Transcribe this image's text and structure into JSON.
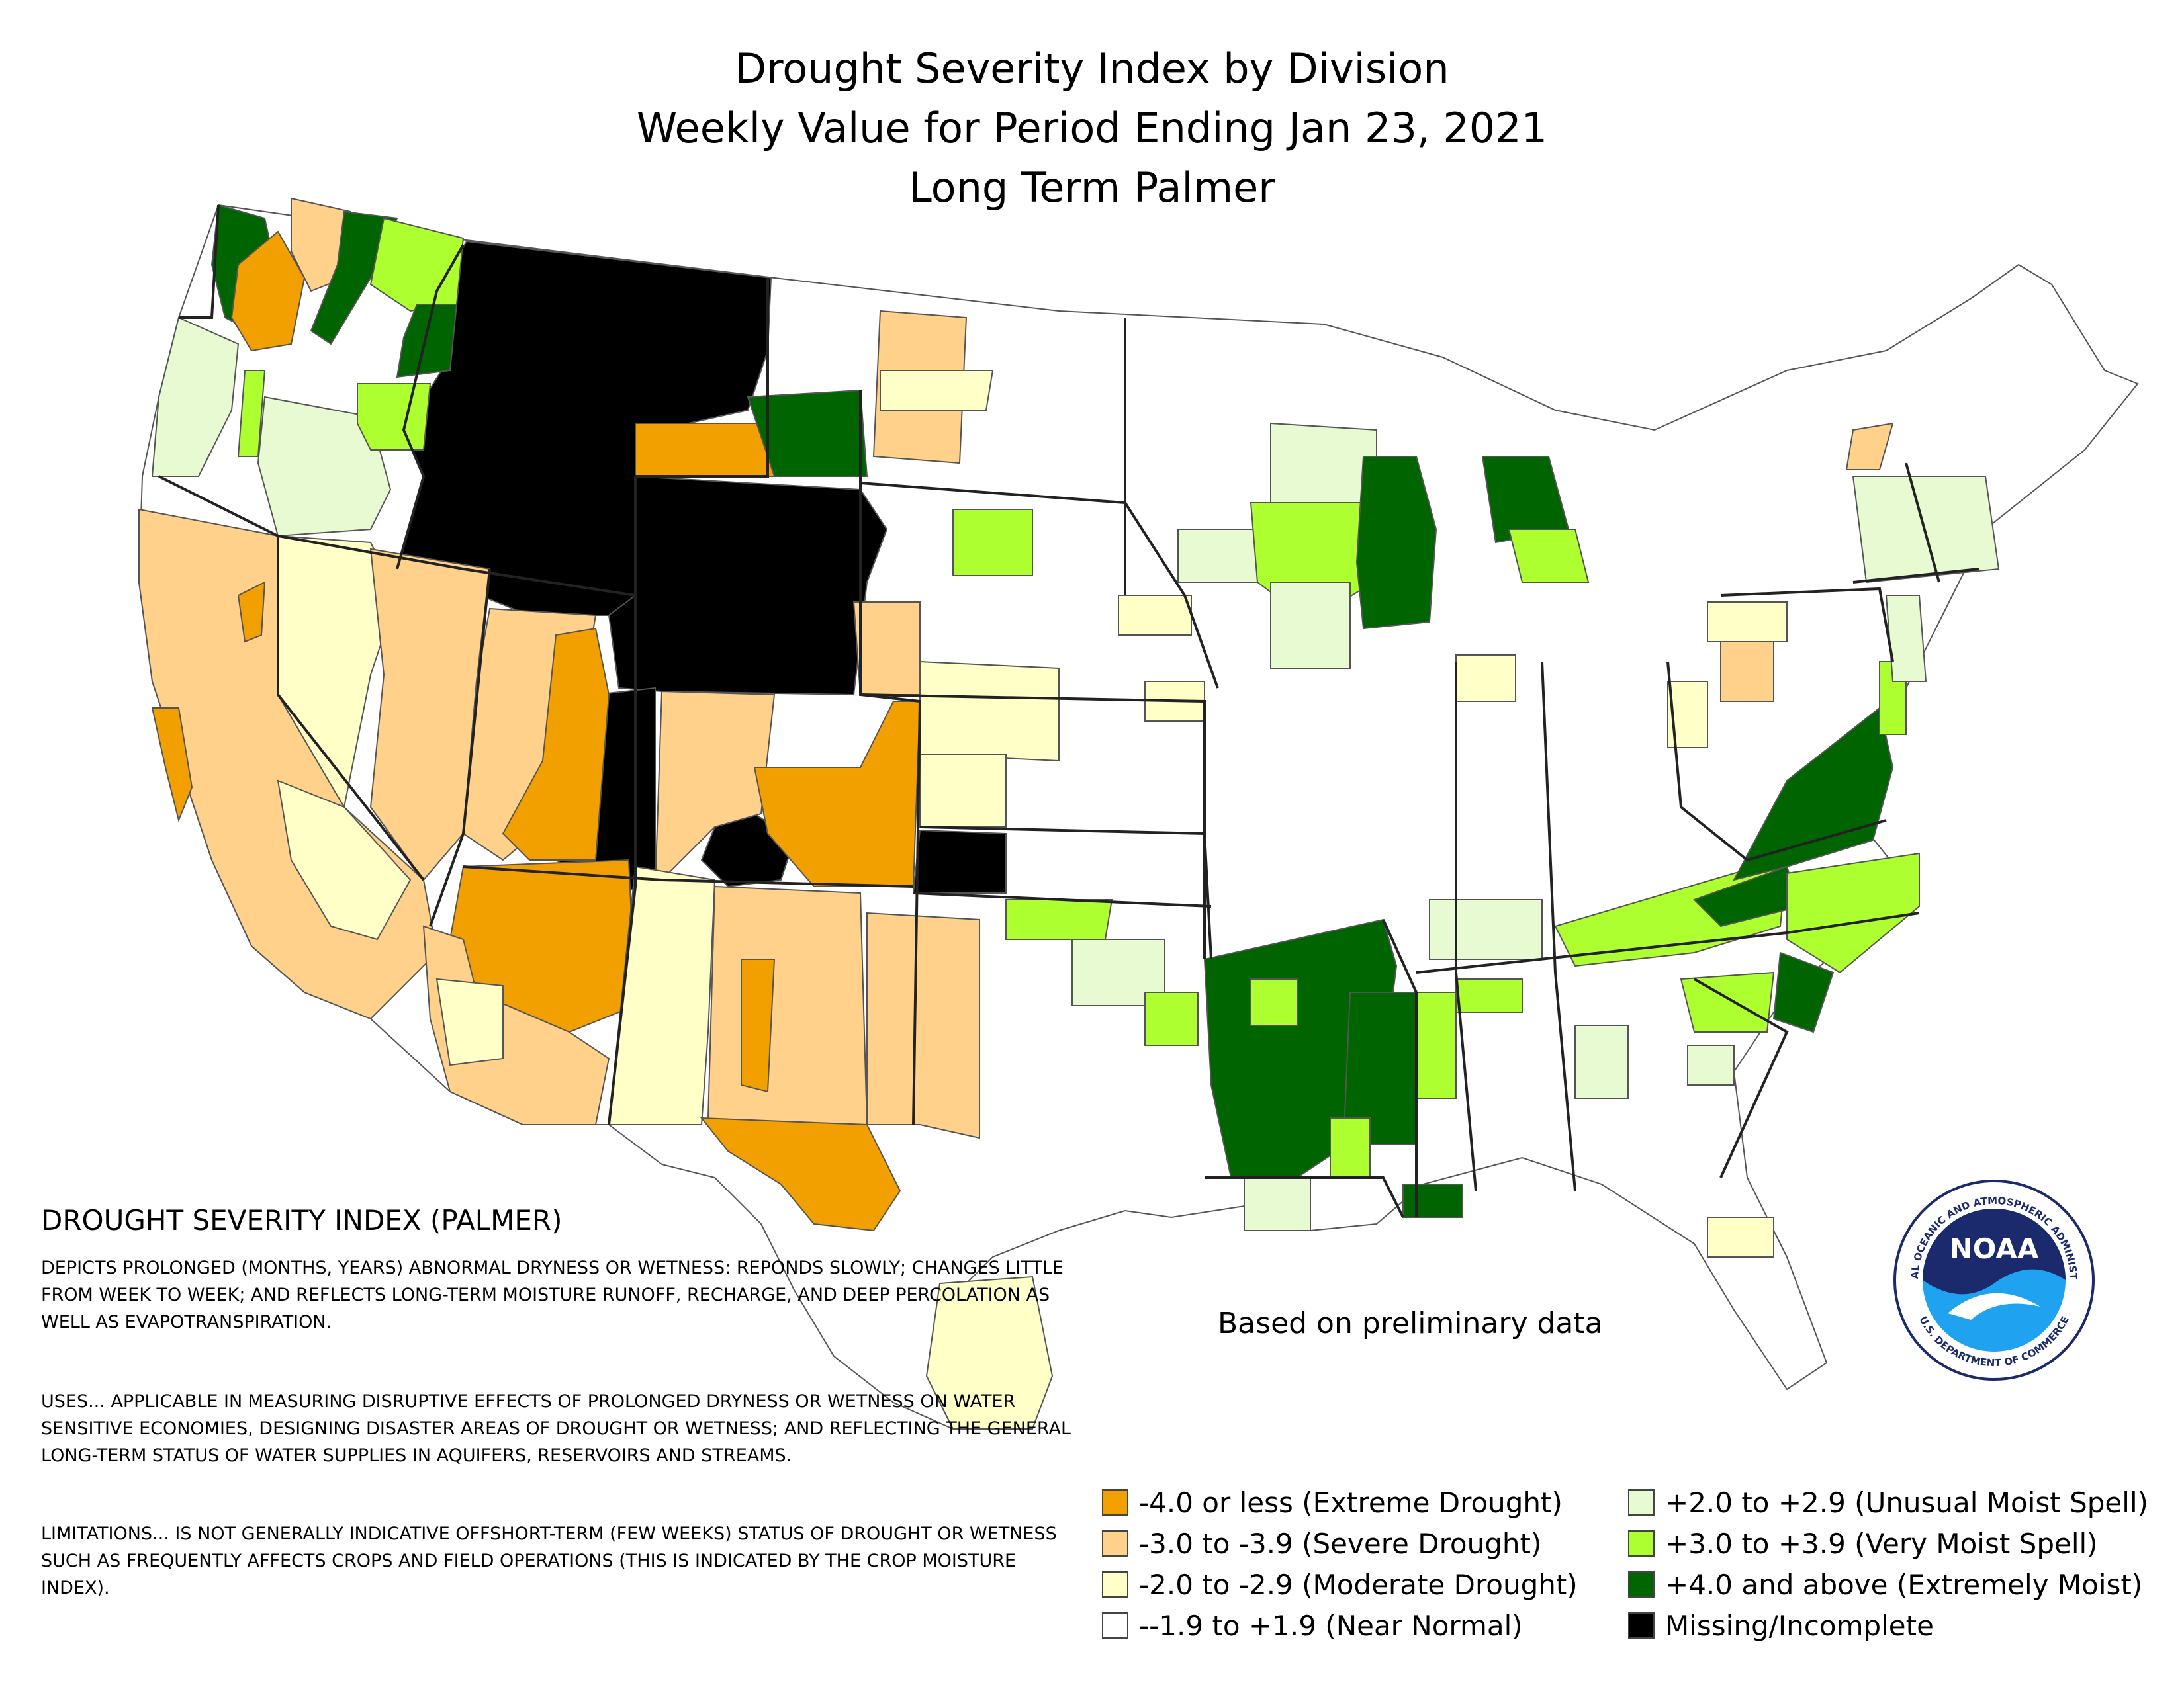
{
  "title_lines": [
    "Drought Severity Index by Division",
    "Weekly Value for Period Ending Jan 23, 2021",
    "Long Term Palmer"
  ],
  "description": {
    "heading": "DROUGHT SEVERITY INDEX (PALMER)",
    "paragraphs": [
      "DEPICTS PROLONGED (MONTHS, YEARS) ABNORMAL DRYNESS OR WETNESS: REPONDS SLOWLY; CHANGES LITTLE FROM WEEK TO WEEK; AND REFLECTS LONG-TERM MOISTURE RUNOFF, RECHARGE, AND DEEP PERCOLATION AS WELL AS EVAPOTRANSPIRATION.",
      "USES... APPLICABLE IN MEASURING DISRUPTIVE EFFECTS OF PROLONGED DRYNESS OR WETNESS ON WATER SENSITIVE ECONOMIES, DESIGNING DISASTER AREAS OF DROUGHT OR WETNESS; AND REFLECTING THE GENERAL LONG-TERM STATUS OF WATER SUPPLIES IN AQUIFERS, RESERVOIRS AND STREAMS.",
      "LIMITATIONS... IS NOT GENERALLY INDICATIVE OFFSHORT-TERM (FEW WEEKS) STATUS OF DROUGHT OR WETNESS SUCH AS FREQUENTLY AFFECTS CROPS AND FIELD OPERATIONS (THIS IS INDICATED BY THE CROP MOISTURE INDEX)."
    ]
  },
  "note": "Based on preliminary data",
  "legend": [
    {
      "label": "-4.0 or less (Extreme Drought)",
      "color": "#f2a000"
    },
    {
      "label": "-3.0 to -3.9 (Severe Drought)",
      "color": "#ffd18a"
    },
    {
      "label": "-2.0 to -2.9 (Moderate Drought)",
      "color": "#ffffc8"
    },
    {
      "label": "--1.9 to +1.9 (Near Normal)",
      "color": "#ffffff"
    },
    {
      "label": "+2.0 to +2.9 (Unusual Moist Spell)",
      "color": "#e8fad2"
    },
    {
      "label": "+3.0 to +3.9 (Very Moist Spell)",
      "color": "#adff2f"
    },
    {
      "label": "+4.0 and above (Extremely Moist)",
      "color": "#006400"
    },
    {
      "label": "Missing/Incomplete",
      "color": "#000000"
    }
  ],
  "logo": {
    "text": "NOAA",
    "ring_text": "NATIONAL OCEANIC AND ATMOSPHERIC ADMINISTRATION",
    "ring_text_bottom": "U.S. DEPARTMENT OF COMMERCE",
    "icon": "noaa-logo"
  }
}
